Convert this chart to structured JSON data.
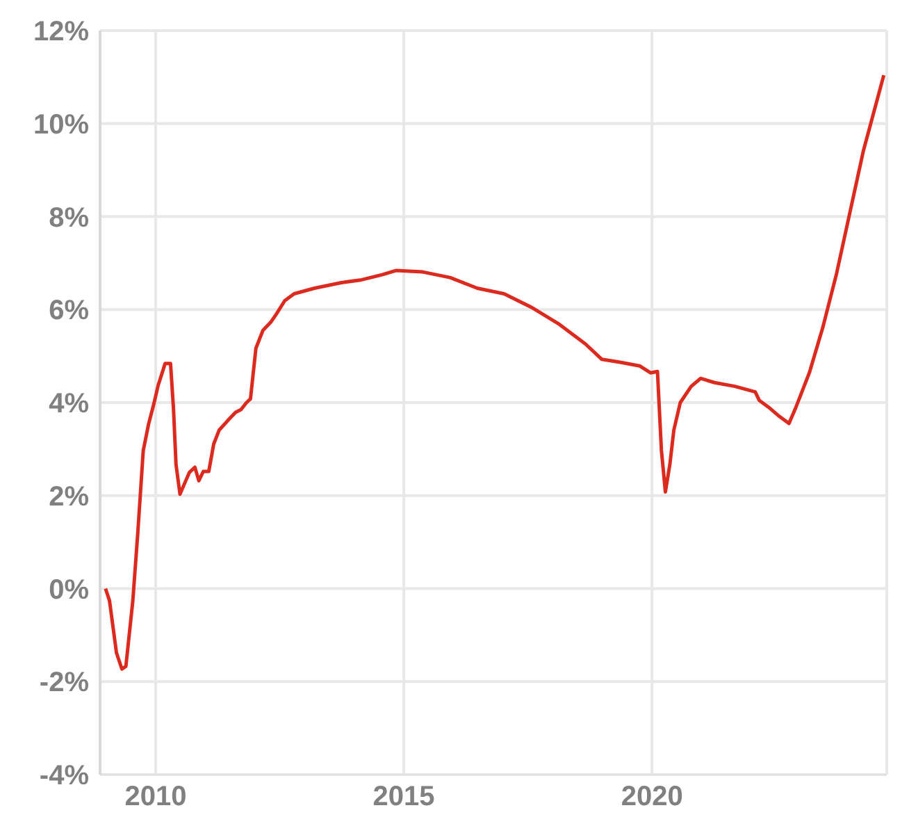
{
  "chart_data": {
    "type": "line",
    "x": [
      2008.99,
      2009.07,
      2009.21,
      2009.32,
      2009.4,
      2009.54,
      2009.64,
      2009.75,
      2009.86,
      2009.97,
      2010.05,
      2010.14,
      2010.19,
      2010.3,
      2010.36,
      2010.41,
      2010.49,
      2010.57,
      2010.68,
      2010.79,
      2010.87,
      2010.96,
      2011.07,
      2011.17,
      2011.28,
      2011.45,
      2011.61,
      2011.72,
      2011.83,
      2011.91,
      2012.02,
      2012.16,
      2012.32,
      2012.43,
      2012.6,
      2012.79,
      2013.2,
      2013.74,
      2014.15,
      2014.56,
      2014.84,
      2015.38,
      2015.93,
      2016.48,
      2017.02,
      2017.57,
      2018.11,
      2018.66,
      2018.99,
      2019.34,
      2019.75,
      2019.97,
      2020.11,
      2020.19,
      2020.27,
      2020.36,
      2020.44,
      2020.57,
      2020.79,
      2020.98,
      2021.26,
      2021.67,
      2022.08,
      2022.16,
      2022.35,
      2022.57,
      2022.76,
      2022.9,
      2023.17,
      2023.44,
      2023.72,
      2023.99,
      2024.26,
      2024.67
    ],
    "series": [
      {
        "color": "#dc2a1f",
        "values": [
          0,
          -0.26,
          -1.38,
          -1.73,
          -1.67,
          -0.26,
          1.2,
          2.97,
          3.55,
          4.0,
          4.37,
          4.67,
          4.84,
          4.84,
          3.85,
          2.67,
          2.03,
          2.23,
          2.5,
          2.61,
          2.32,
          2.52,
          2.52,
          3.11,
          3.41,
          3.61,
          3.79,
          3.85,
          4.0,
          4.08,
          5.17,
          5.55,
          5.73,
          5.9,
          6.19,
          6.34,
          6.46,
          6.58,
          6.64,
          6.75,
          6.84,
          6.81,
          6.69,
          6.46,
          6.34,
          6.05,
          5.7,
          5.26,
          4.93,
          4.87,
          4.79,
          4.64,
          4.67,
          2.97,
          2.08,
          2.67,
          3.41,
          4.0,
          4.35,
          4.52,
          4.43,
          4.35,
          4.23,
          4.05,
          3.9,
          3.7,
          3.55,
          3.9,
          4.64,
          5.61,
          6.78,
          8.1,
          9.42,
          11.04
        ]
      }
    ],
    "xlim": [
      2008.88,
      2024.73
    ],
    "xticks": [
      2010,
      2015,
      2020
    ],
    "ylim": [
      -4,
      12
    ],
    "yticks": [
      {
        "value": -4,
        "label": "-4%"
      },
      {
        "value": -2,
        "label": "-2%"
      },
      {
        "value": 0,
        "label": "0%"
      },
      {
        "value": 2,
        "label": "2%"
      },
      {
        "value": 4,
        "label": "4%"
      },
      {
        "value": 6,
        "label": "6%"
      },
      {
        "value": 8,
        "label": "8%"
      },
      {
        "value": 10,
        "label": "10%"
      },
      {
        "value": 12,
        "label": "12%"
      }
    ],
    "grid": true,
    "marker": "none",
    "line_style": "solid",
    "legend": false
  }
}
